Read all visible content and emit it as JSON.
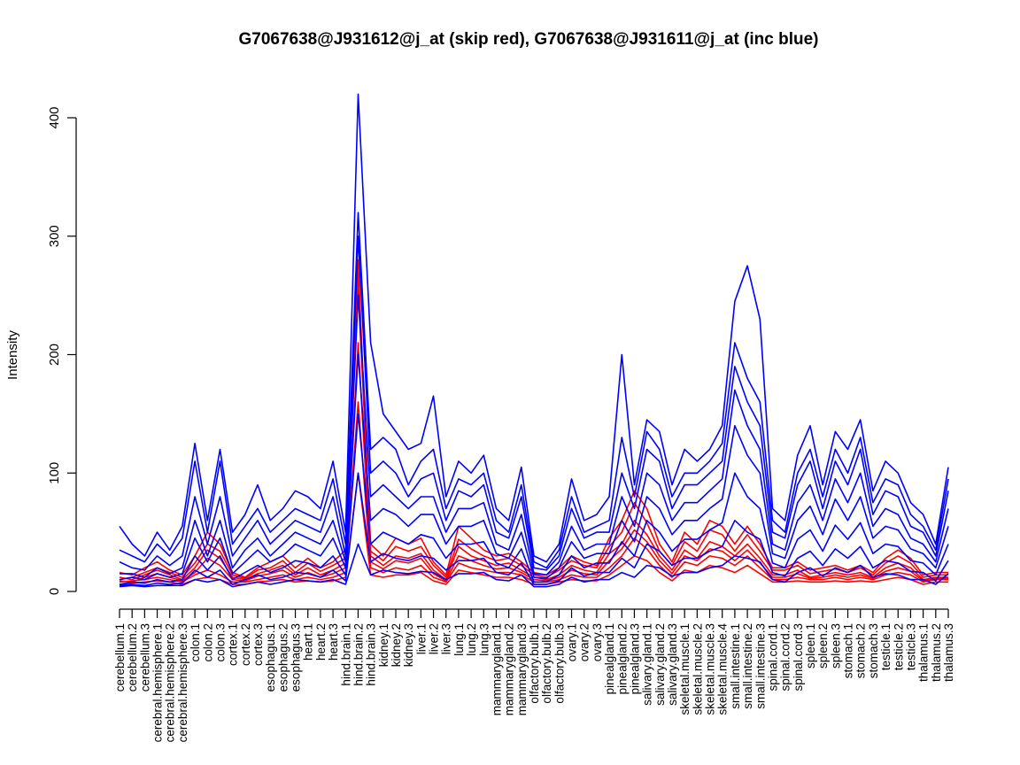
{
  "chart_data": {
    "type": "line",
    "title": "G7067638@J931612@j_at (skip red), G7067638@J931611@j_at (inc blue)",
    "xlabel": "",
    "ylabel": "Intensity",
    "ylim": [
      0,
      420
    ],
    "yticks": [
      0,
      100,
      200,
      300,
      400
    ],
    "grid": false,
    "legend": "none",
    "colors": {
      "skip": "#ff0000",
      "inc": "#0000ff"
    },
    "categories": [
      "cerebellum.1",
      "cerebellum.2",
      "cerebellum.3",
      "cerebral.hemisphere.1",
      "cerebral.hemisphere.2",
      "cerebral.hemisphere.3",
      "colon.1",
      "colon.2",
      "colon.3",
      "cortex.1",
      "cortex.2",
      "cortex.3",
      "esophagus.1",
      "esophagus.2",
      "esophagus.3",
      "heart.1",
      "heart.2",
      "heart.3",
      "hind.brain.1",
      "hind.brain.2",
      "hind.brain.3",
      "kidney.1",
      "kidney.2",
      "kidney.3",
      "liver.1",
      "liver.2",
      "liver.3",
      "lung.1",
      "lung.2",
      "lung.3",
      "mammarygland.1",
      "mammarygland.2",
      "mammarygland.3",
      "olfactory.bulb.1",
      "olfactory.bulb.2",
      "olfactory.bulb.3",
      "ovary.1",
      "ovary.2",
      "ovary.3",
      "pinealgland.1",
      "pinealgland.2",
      "pinealgland.3",
      "salivary.gland.1",
      "salivary.gland.2",
      "salivary.gland.3",
      "skeletal.muscle.1",
      "skeletal.muscle.2",
      "skeletal.muscle.3",
      "skeletal.muscle.4",
      "small.intestine.1",
      "small.intestine.2",
      "small.intestine.3",
      "spinal.cord.1",
      "spinal.cord.2",
      "spinal.cord.3",
      "spleen.1",
      "spleen.2",
      "spleen.3",
      "stomach.1",
      "stomach.2",
      "stomach.3",
      "testicle.1",
      "testicle.2",
      "testicle.3",
      "thalamus.1",
      "thalamus.2",
      "thalamus.3"
    ],
    "groups": [
      {
        "group": "skip",
        "series": [
          {
            "values": [
              12,
              10,
              14,
              18,
              14,
              10,
              20,
              35,
              28,
              12,
              10,
              15,
              18,
              22,
              14,
              20,
              14,
              18,
              24,
              280,
              30,
              22,
              30,
              28,
              32,
              18,
              10,
              38,
              30,
              26,
              22,
              24,
              18,
              12,
              10,
              14,
              22,
              18,
              16,
              32,
              40,
              60,
              48,
              30,
              18,
              35,
              28,
              42,
              38,
              30,
              40,
              28,
              14,
              14,
              18,
              12,
              14,
              16,
              14,
              16,
              12,
              20,
              24,
              20,
              10,
              12,
              12
            ]
          },
          {
            "values": [
              8,
              9,
              10,
              12,
              10,
              8,
              14,
              18,
              14,
              8,
              8,
              10,
              12,
              14,
              10,
              12,
              10,
              12,
              16,
              160,
              20,
              16,
              20,
              18,
              22,
              12,
              8,
              24,
              20,
              18,
              16,
              16,
              14,
              8,
              8,
              10,
              14,
              12,
              12,
              20,
              30,
              45,
              36,
              22,
              12,
              25,
              22,
              30,
              28,
              22,
              30,
              20,
              10,
              10,
              12,
              10,
              10,
              12,
              10,
              12,
              10,
              14,
              16,
              14,
              8,
              10,
              10
            ]
          },
          {
            "values": [
              16,
              14,
              20,
              25,
              18,
              14,
              30,
              50,
              40,
              16,
              12,
              20,
              25,
              30,
              20,
              28,
              20,
              25,
              35,
              255,
              40,
              30,
              45,
              40,
              45,
              25,
              14,
              55,
              45,
              35,
              30,
              32,
              25,
              16,
              14,
              20,
              30,
              25,
              22,
              45,
              60,
              85,
              70,
              40,
              25,
              50,
              40,
              60,
              55,
              40,
              55,
              40,
              20,
              20,
              25,
              18,
              20,
              22,
              18,
              22,
              16,
              28,
              35,
              28,
              14,
              16,
              16
            ]
          },
          {
            "values": [
              6,
              7,
              8,
              9,
              8,
              6,
              10,
              12,
              10,
              6,
              6,
              8,
              9,
              10,
              8,
              9,
              8,
              9,
              12,
              100,
              14,
              12,
              14,
              14,
              16,
              9,
              6,
              18,
              16,
              14,
              12,
              12,
              10,
              6,
              6,
              8,
              10,
              9,
              9,
              14,
              22,
              30,
              26,
              16,
              9,
              18,
              16,
              22,
              20,
              16,
              22,
              15,
              8,
              8,
              9,
              8,
              8,
              9,
              8,
              9,
              8,
              10,
              12,
              10,
              6,
              8,
              8
            ]
          },
          {
            "values": [
              10,
              12,
              16,
              20,
              16,
              12,
              24,
              40,
              34,
              14,
              11,
              18,
              20,
              26,
              16,
              24,
              17,
              22,
              28,
              270,
              34,
              26,
              38,
              34,
              38,
              22,
              12,
              44,
              36,
              30,
              26,
              28,
              22,
              14,
              12,
              18,
              26,
              22,
              20,
              38,
              50,
              75,
              58,
              34,
              22,
              42,
              34,
              52,
              48,
              34,
              48,
              34,
              18,
              18,
              22,
              15,
              17,
              19,
              16,
              20,
              14,
              24,
              30,
              24,
              12,
              14,
              14
            ]
          },
          {
            "values": [
              9,
              8,
              12,
              15,
              12,
              9,
              16,
              28,
              22,
              10,
              9,
              13,
              15,
              18,
              12,
              16,
              12,
              15,
              20,
              210,
              25,
              19,
              26,
              24,
              28,
              15,
              9,
              30,
              26,
              22,
              19,
              20,
              16,
              10,
              9,
              12,
              18,
              15,
              14,
              26,
              36,
              52,
              42,
              26,
              15,
              30,
              26,
              36,
              34,
              26,
              35,
              24,
              12,
              12,
              15,
              11,
              12,
              14,
              12,
              14,
              11,
              17,
              20,
              17,
              9,
              11,
              11
            ]
          }
        ]
      },
      {
        "group": "inc",
        "series": [
          {
            "values": [
              55,
              40,
              30,
              50,
              35,
              55,
              125,
              60,
              120,
              50,
              65,
              90,
              60,
              70,
              85,
              80,
              70,
              110,
              50,
              420,
              210,
              150,
              135,
              120,
              125,
              165,
              80,
              110,
              100,
              115,
              70,
              60,
              105,
              30,
              25,
              40,
              95,
              60,
              65,
              80,
              200,
              90,
              145,
              135,
              90,
              120,
              110,
              120,
              140,
              245,
              275,
              230,
              70,
              60,
              115,
              140,
              90,
              135,
              120,
              145,
              85,
              110,
              100,
              75,
              65,
              40,
              105
            ]
          },
          {
            "values": [
              35,
              30,
              25,
              40,
              30,
              45,
              110,
              50,
              110,
              40,
              55,
              70,
              50,
              60,
              70,
              65,
              60,
              95,
              40,
              320,
              120,
              130,
              120,
              90,
              110,
              120,
              70,
              95,
              90,
              100,
              60,
              50,
              90,
              25,
              20,
              35,
              80,
              50,
              55,
              60,
              130,
              80,
              135,
              120,
              80,
              100,
              100,
              110,
              125,
              210,
              180,
              160,
              60,
              50,
              100,
              120,
              80,
              120,
              100,
              130,
              75,
              95,
              90,
              65,
              55,
              35,
              95
            ]
          },
          {
            "values": [
              25,
              20,
              18,
              30,
              22,
              30,
              80,
              40,
              80,
              30,
              45,
              60,
              40,
              50,
              60,
              55,
              50,
              80,
              30,
              300,
              100,
              110,
              100,
              80,
              95,
              100,
              60,
              85,
              80,
              90,
              50,
              45,
              80,
              20,
              18,
              30,
              70,
              45,
              50,
              50,
              100,
              70,
              120,
              110,
              70,
              90,
              90,
              100,
              110,
              190,
              160,
              140,
              50,
              45,
              90,
              110,
              70,
              110,
              90,
              120,
              65,
              85,
              80,
              55,
              50,
              30,
              85
            ]
          },
          {
            "values": [
              15,
              15,
              12,
              20,
              15,
              20,
              60,
              30,
              60,
              20,
              35,
              45,
              30,
              40,
              50,
              45,
              40,
              60,
              25,
              250,
              80,
              90,
              80,
              70,
              80,
              80,
              50,
              70,
              70,
              75,
              40,
              35,
              65,
              15,
              14,
              25,
              55,
              35,
              40,
              40,
              80,
              55,
              100,
              90,
              60,
              75,
              75,
              85,
              95,
              170,
              140,
              120,
              40,
              35,
              75,
              90,
              60,
              95,
              75,
              100,
              55,
              70,
              65,
              45,
              40,
              25,
              70
            ]
          },
          {
            "values": [
              10,
              12,
              10,
              15,
              12,
              15,
              45,
              25,
              45,
              15,
              25,
              35,
              25,
              30,
              40,
              35,
              30,
              45,
              20,
              200,
              60,
              70,
              65,
              55,
              65,
              65,
              40,
              55,
              55,
              60,
              32,
              28,
              50,
              12,
              11,
              20,
              42,
              28,
              32,
              32,
              60,
              42,
              80,
              70,
              48,
              60,
              60,
              70,
              78,
              140,
              115,
              100,
              32,
              28,
              60,
              72,
              48,
              78,
              60,
              80,
              45,
              55,
              52,
              36,
              32,
              20,
              55
            ]
          },
          {
            "values": [
              6,
              8,
              7,
              10,
              8,
              10,
              30,
              18,
              30,
              10,
              16,
              22,
              16,
              20,
              26,
              24,
              20,
              30,
              14,
              150,
              40,
              50,
              45,
              40,
              48,
              45,
              28,
              40,
              40,
              42,
              24,
              20,
              36,
              8,
              8,
              14,
              30,
              20,
              24,
              24,
              42,
              30,
              60,
              50,
              34,
              44,
              44,
              52,
              58,
              100,
              80,
              70,
              24,
              20,
              44,
              52,
              34,
              56,
              44,
              58,
              32,
              40,
              38,
              26,
              24,
              14,
              40
            ]
          },
          {
            "values": [
              5,
              6,
              5,
              7,
              6,
              7,
              18,
              12,
              18,
              6,
              10,
              14,
              10,
              12,
              16,
              15,
              12,
              18,
              9,
              100,
              25,
              32,
              28,
              26,
              30,
              28,
              18,
              26,
              26,
              28,
              16,
              14,
              24,
              6,
              6,
              9,
              20,
              13,
              16,
              16,
              28,
              20,
              40,
              34,
              22,
              28,
              28,
              34,
              38,
              60,
              50,
              44,
              16,
              13,
              28,
              34,
              22,
              36,
              28,
              38,
              20,
              26,
              24,
              17,
              16,
              9,
              26
            ]
          },
          {
            "values": [
              4,
              5,
              4,
              5,
              5,
              5,
              10,
              8,
              10,
              4,
              6,
              8,
              6,
              8,
              10,
              9,
              8,
              10,
              6,
              40,
              14,
              18,
              16,
              15,
              17,
              16,
              10,
              15,
              15,
              16,
              10,
              9,
              14,
              4,
              4,
              6,
              12,
              8,
              10,
              10,
              16,
              12,
              22,
              20,
              13,
              16,
              16,
              20,
              22,
              30,
              28,
              25,
              10,
              8,
              16,
              20,
              13,
              20,
              16,
              22,
              12,
              15,
              14,
              10,
              10,
              6,
              15
            ]
          }
        ]
      }
    ]
  }
}
